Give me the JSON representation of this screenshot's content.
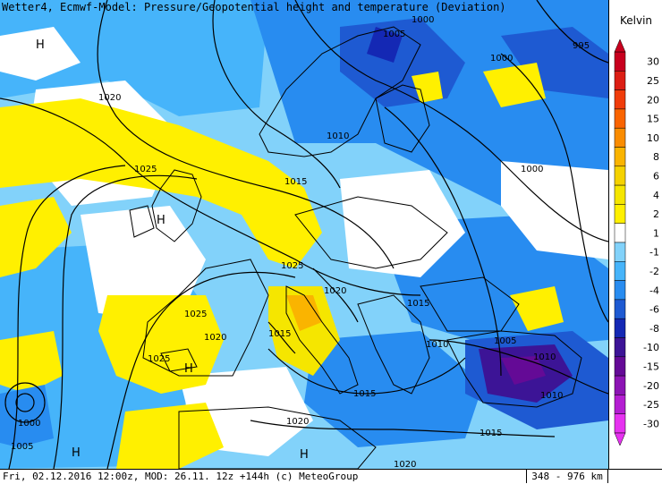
{
  "title": "Wetter4, Ecmwf-Model: Pressure/Geopotential height and temperature (Deviation)",
  "footer": {
    "text": "Fri, 02.12.2016 12:00z, MOD: 26.11. 12z +144h (c) MeteoGroup",
    "scale": "348 - 976 km"
  },
  "legend": {
    "unit": "Kelvin",
    "levels": [
      {
        "label": "30",
        "color": "#c8001e"
      },
      {
        "label": "25",
        "color": "#dc1e14"
      },
      {
        "label": "20",
        "color": "#f03c0a"
      },
      {
        "label": "15",
        "color": "#fa6400"
      },
      {
        "label": "10",
        "color": "#fa8c00"
      },
      {
        "label": "8",
        "color": "#fab400"
      },
      {
        "label": "6",
        "color": "#f5d200"
      },
      {
        "label": "4",
        "color": "#f5e600"
      },
      {
        "label": "2",
        "color": "#fff000"
      },
      {
        "label": "1",
        "color": "#ffffff"
      },
      {
        "label": "-1",
        "color": "#82d2fa"
      },
      {
        "label": "-2",
        "color": "#46b4fa"
      },
      {
        "label": "-4",
        "color": "#288cf0"
      },
      {
        "label": "-6",
        "color": "#1e5ad2"
      },
      {
        "label": "-8",
        "color": "#1428b4"
      },
      {
        "label": "-10",
        "color": "#3c1496"
      },
      {
        "label": "-15",
        "color": "#640a96"
      },
      {
        "label": "-20",
        "color": "#8c14b4"
      },
      {
        "label": "-25",
        "color": "#b41ed2"
      },
      {
        "label": "-30",
        "color": "#e632f0"
      }
    ]
  },
  "isobar_labels": [
    "1000",
    "1005",
    "995",
    "1000",
    "1020",
    "1010",
    "1025",
    "1015",
    "1000",
    "1025",
    "1020",
    "1015",
    "1025",
    "1020",
    "1015",
    "1010",
    "1005",
    "1010",
    "1025",
    "1015",
    "1010",
    "1000",
    "1005",
    "1020",
    "1015",
    "1020"
  ],
  "pressure_centers": [
    "H",
    "H",
    "H",
    "H",
    "H"
  ]
}
